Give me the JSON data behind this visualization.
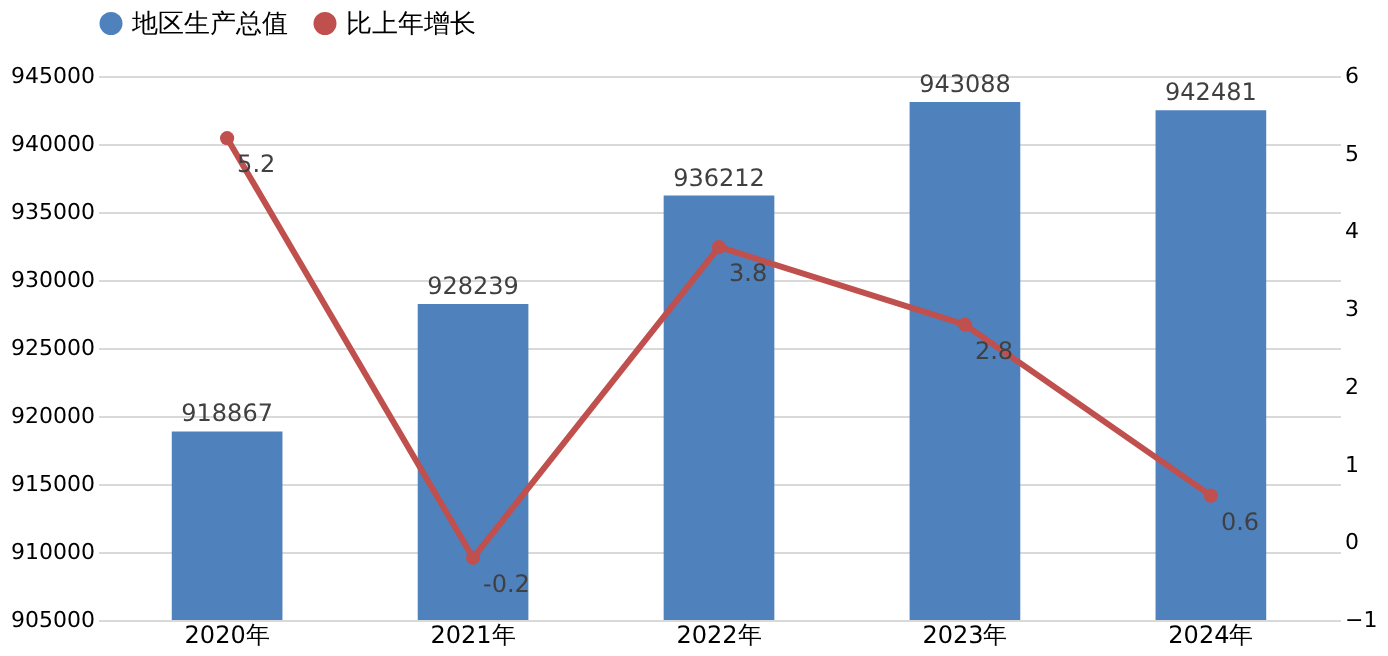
{
  "chart_data": {
    "type": "bar",
    "categories": [
      "2020年",
      "2021年",
      "2022年",
      "2023年",
      "2024年"
    ],
    "series": [
      {
        "name": "地区生产总值",
        "color": "#4f81bd",
        "values": [
          918867,
          928239,
          936212,
          943088,
          942481
        ]
      },
      {
        "name": "比上年增长",
        "type": "line",
        "axis": "y2",
        "color": "#c0504d",
        "values": [
          5.2,
          -0.2,
          3.8,
          2.8,
          0.6
        ]
      }
    ],
    "ylim": [
      905000,
      945000
    ],
    "yticks": [
      905000,
      910000,
      915000,
      920000,
      925000,
      930000,
      935000,
      940000,
      945000
    ],
    "y2lim": [
      -1,
      6
    ],
    "y2ticks": [
      -1,
      0,
      1,
      2,
      3,
      4,
      5,
      6
    ],
    "grid": "y",
    "legend": "top",
    "marker": "circle",
    "line_style": "solid",
    "data_labels": true
  }
}
